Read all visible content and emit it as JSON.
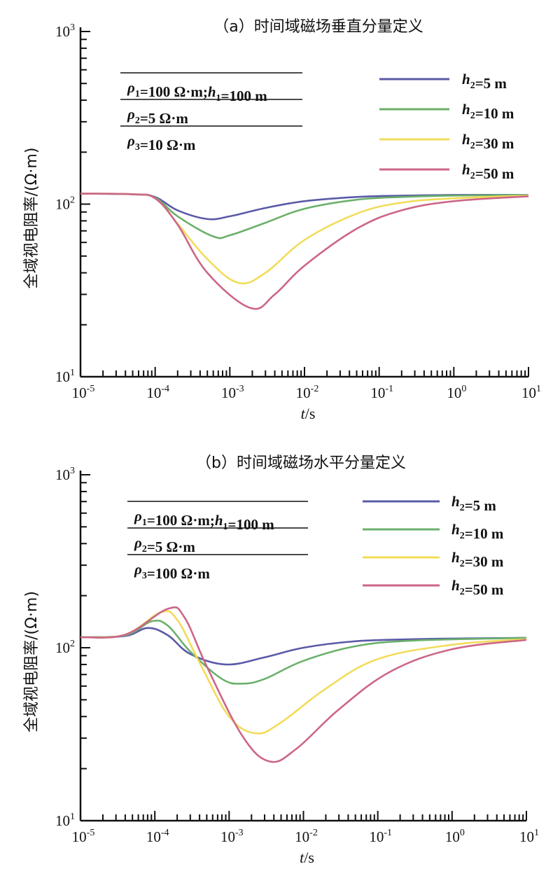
{
  "chart_data": [
    {
      "type": "line",
      "title": "（a）时间域磁场垂直分量定义",
      "xlabel": "t/s",
      "ylabel": "全域视电阻率/(Ω·m)",
      "xscale": "log",
      "yscale": "log",
      "xlim": [
        1e-05,
        10
      ],
      "ylim": [
        10,
        1000
      ],
      "xticks": [
        {
          "base": "10",
          "exp": "-5"
        },
        {
          "base": "10",
          "exp": "-4"
        },
        {
          "base": "10",
          "exp": "-3"
        },
        {
          "base": "10",
          "exp": "-2"
        },
        {
          "base": "10",
          "exp": "-1"
        },
        {
          "base": "10",
          "exp": "0"
        },
        {
          "base": "10",
          "exp": "1"
        }
      ],
      "yticks": [
        {
          "base": "10",
          "exp": "1"
        },
        {
          "base": "10",
          "exp": "2"
        },
        {
          "base": "10",
          "exp": "3"
        }
      ],
      "params": [
        "ρ1=100 Ω·m;h1=100 m",
        "ρ2=5 Ω·m",
        "ρ3=10 Ω·m"
      ],
      "legend_position": "top-right",
      "series": [
        {
          "name": "h2=5 m",
          "color": "#5a5aa8",
          "points": [
            [
              1e-05,
              115
            ],
            [
              5e-05,
              114
            ],
            [
              0.0001,
              110
            ],
            [
              0.0002,
              92
            ],
            [
              0.0005,
              82
            ],
            [
              0.001,
              85
            ],
            [
              0.003,
              95
            ],
            [
              0.01,
              104
            ],
            [
              0.05,
              110
            ],
            [
              0.2,
              112
            ],
            [
              1,
              113
            ],
            [
              10,
              113
            ]
          ]
        },
        {
          "name": "h2=10 m",
          "color": "#6ab06a",
          "points": [
            [
              1e-05,
              115
            ],
            [
              5e-05,
              114
            ],
            [
              0.0001,
              109
            ],
            [
              0.0002,
              85
            ],
            [
              0.0006,
              65
            ],
            [
              0.001,
              66
            ],
            [
              0.003,
              78
            ],
            [
              0.01,
              94
            ],
            [
              0.05,
              106
            ],
            [
              0.2,
              110
            ],
            [
              1,
              112
            ],
            [
              10,
              113
            ]
          ]
        },
        {
          "name": "h2=30 m",
          "color": "#f2dc5a",
          "points": [
            [
              1e-05,
              115
            ],
            [
              5e-05,
              114
            ],
            [
              0.0001,
              108
            ],
            [
              0.0002,
              77
            ],
            [
              0.0005,
              48
            ],
            [
              0.0013,
              35
            ],
            [
              0.003,
              40
            ],
            [
              0.01,
              62
            ],
            [
              0.05,
              88
            ],
            [
              0.2,
              102
            ],
            [
              1,
              108
            ],
            [
              10,
              112
            ]
          ]
        },
        {
          "name": "h2=50 m",
          "color": "#cc6688",
          "points": [
            [
              1e-05,
              115
            ],
            [
              5e-05,
              114
            ],
            [
              0.0001,
              108
            ],
            [
              0.0002,
              76
            ],
            [
              0.0005,
              40
            ],
            [
              0.0019,
              25
            ],
            [
              0.004,
              30
            ],
            [
              0.01,
              44
            ],
            [
              0.05,
              72
            ],
            [
              0.2,
              92
            ],
            [
              1,
              104
            ],
            [
              10,
              111
            ]
          ]
        }
      ]
    },
    {
      "type": "line",
      "title": "（b）时间域磁场水平分量定义",
      "xlabel": "t/s",
      "ylabel": "全域视电阻率/(Ω·m)",
      "xscale": "log",
      "yscale": "log",
      "xlim": [
        1e-05,
        10
      ],
      "ylim": [
        10,
        1000
      ],
      "xticks": [
        {
          "base": "10",
          "exp": "-5"
        },
        {
          "base": "10",
          "exp": "-4"
        },
        {
          "base": "10",
          "exp": "-3"
        },
        {
          "base": "10",
          "exp": "-2"
        },
        {
          "base": "10",
          "exp": "-1"
        },
        {
          "base": "10",
          "exp": "0"
        },
        {
          "base": "10",
          "exp": "1"
        }
      ],
      "yticks": [
        {
          "base": "10",
          "exp": "1"
        },
        {
          "base": "10",
          "exp": "2"
        },
        {
          "base": "10",
          "exp": "3"
        }
      ],
      "params": [
        "ρ1=100 Ω·m;h1=100 m",
        "ρ2=5 Ω·m",
        "ρ3=100 Ω·m"
      ],
      "legend_position": "top-right",
      "series": [
        {
          "name": "h2=5 m",
          "color": "#5a5aa8",
          "points": [
            [
              1e-05,
              115
            ],
            [
              4e-05,
              117
            ],
            [
              8e-05,
              130
            ],
            [
              0.00015,
              118
            ],
            [
              0.0003,
              92
            ],
            [
              0.0009,
              80
            ],
            [
              0.003,
              88
            ],
            [
              0.01,
              100
            ],
            [
              0.05,
              109
            ],
            [
              0.3,
              112
            ],
            [
              1,
              113
            ],
            [
              10,
              114
            ]
          ]
        },
        {
          "name": "h2=10 m",
          "color": "#6ab06a",
          "points": [
            [
              1e-05,
              115
            ],
            [
              4e-05,
              118
            ],
            [
              9e-05,
              142
            ],
            [
              0.00015,
              134
            ],
            [
              0.0003,
              95
            ],
            [
              0.0008,
              66
            ],
            [
              0.0015,
              62
            ],
            [
              0.003,
              66
            ],
            [
              0.01,
              84
            ],
            [
              0.05,
              102
            ],
            [
              0.3,
              110
            ],
            [
              10,
              114
            ]
          ]
        },
        {
          "name": "h2=30 m",
          "color": "#f2dc5a",
          "points": [
            [
              1e-05,
              115
            ],
            [
              4e-05,
              119
            ],
            [
              0.00012,
              160
            ],
            [
              0.0002,
              145
            ],
            [
              0.0004,
              82
            ],
            [
              0.001,
              40
            ],
            [
              0.0023,
              32
            ],
            [
              0.005,
              37
            ],
            [
              0.02,
              58
            ],
            [
              0.1,
              86
            ],
            [
              1,
              104
            ],
            [
              10,
              112
            ]
          ]
        },
        {
          "name": "h2=50 m",
          "color": "#cc6688",
          "points": [
            [
              1e-05,
              115
            ],
            [
              4e-05,
              119
            ],
            [
              0.00015,
              168
            ],
            [
              0.00025,
              150
            ],
            [
              0.0005,
              78
            ],
            [
              0.0015,
              31
            ],
            [
              0.0035,
              22
            ],
            [
              0.008,
              26
            ],
            [
              0.03,
              44
            ],
            [
              0.15,
              73
            ],
            [
              1,
              98
            ],
            [
              10,
              111
            ]
          ]
        }
      ]
    }
  ]
}
